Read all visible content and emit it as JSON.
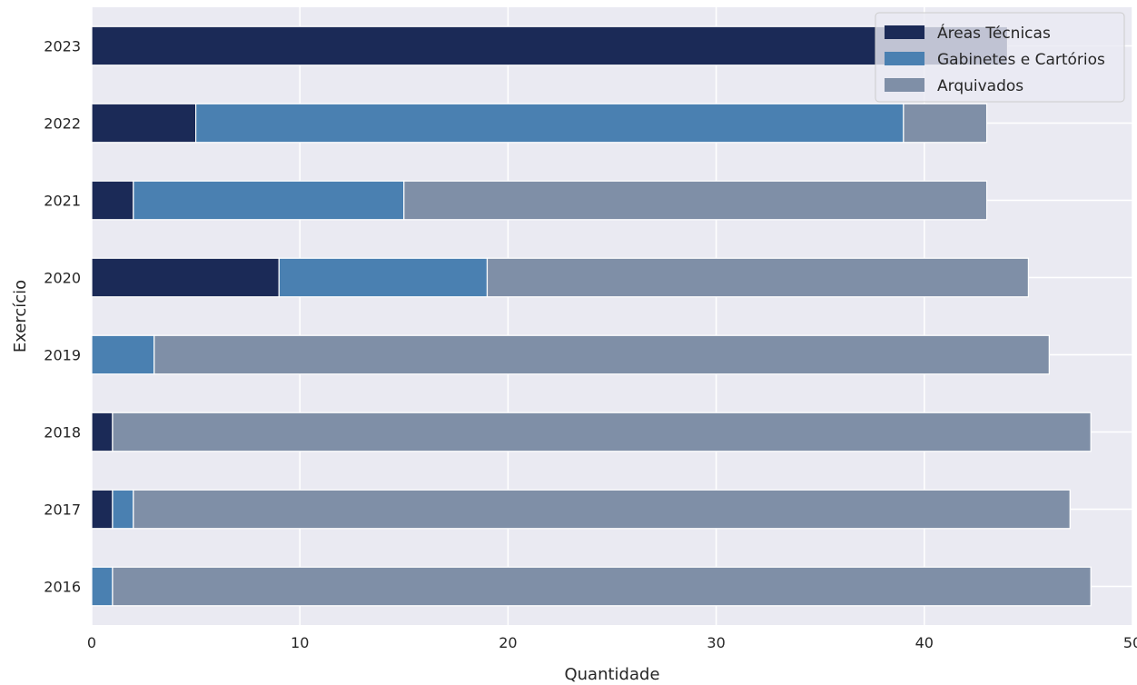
{
  "chart_data": {
    "type": "bar",
    "orientation": "horizontal",
    "stacked": true,
    "title": "",
    "xlabel": "Quantidade",
    "ylabel": "Exercício",
    "categories": [
      "2016",
      "2017",
      "2018",
      "2019",
      "2020",
      "2021",
      "2022",
      "2023"
    ],
    "xlim": [
      0,
      50
    ],
    "xticks": [
      0,
      10,
      20,
      30,
      40,
      50
    ],
    "grid": true,
    "legend_position": "top-right",
    "series": [
      {
        "name": "Áreas Técnicas",
        "color": "#1b2a57",
        "values": [
          0,
          1,
          1,
          0,
          9,
          2,
          5,
          44
        ]
      },
      {
        "name": "Gabinetes e Cartórios",
        "color": "#4a80b1",
        "values": [
          1,
          1,
          0,
          3,
          10,
          13,
          34,
          0
        ]
      },
      {
        "name": "Arquivados",
        "color": "#7f8fa7",
        "values": [
          47,
          45,
          47,
          43,
          26,
          28,
          4,
          0
        ]
      }
    ]
  }
}
